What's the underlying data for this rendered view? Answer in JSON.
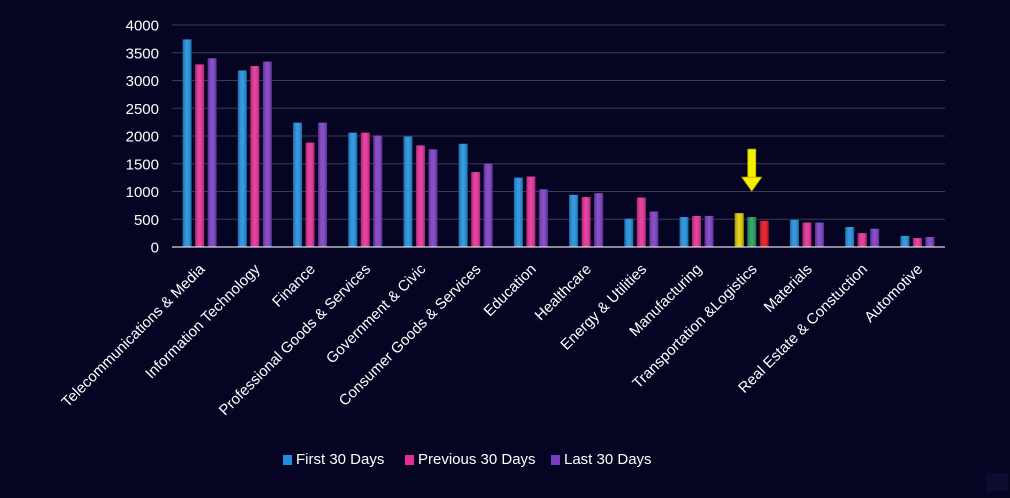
{
  "chart_data": {
    "type": "bar",
    "title": "",
    "xlabel": "",
    "ylabel": "",
    "ylim": [
      0,
      4000
    ],
    "yticks": [
      0,
      500,
      1000,
      1500,
      2000,
      2500,
      3000,
      3500,
      4000
    ],
    "grid": true,
    "legend_position": "bottom",
    "categories": [
      "Telecommunications & Media",
      "Information Technology",
      "Finance",
      "Professional Goods & Services",
      "Government & Civic",
      "Consumer Goods &  Services",
      "Education",
      "Healthcare",
      "Energy & Utilities",
      "Manufacturing",
      "Transportation &Logistics",
      "Materials",
      "Real Estate & Constuction",
      "Automotive"
    ],
    "series": [
      {
        "name": "First 30 Days",
        "color": "#1e8fe0",
        "values": [
          3740,
          3180,
          2240,
          2060,
          1990,
          1860,
          1250,
          940,
          510,
          540,
          610,
          490,
          360,
          200
        ]
      },
      {
        "name": "Previous 30 Days",
        "color": "#e62d96",
        "values": [
          3290,
          3260,
          1880,
          2060,
          1830,
          1350,
          1270,
          900,
          890,
          560,
          540,
          440,
          250,
          160
        ]
      },
      {
        "name": "Last 30 Days",
        "color": "#7b3bc4",
        "values": [
          3400,
          3340,
          2240,
          2010,
          1760,
          1500,
          1040,
          970,
          640,
          560,
          470,
          440,
          330,
          180
        ]
      }
    ],
    "highlight": {
      "category": "Transportation &Logistics",
      "marker": "down-arrow",
      "marker_color": "#f5f000",
      "bar_colors": [
        "#e3cf00",
        "#1e9e5a",
        "#e8101c"
      ]
    }
  }
}
